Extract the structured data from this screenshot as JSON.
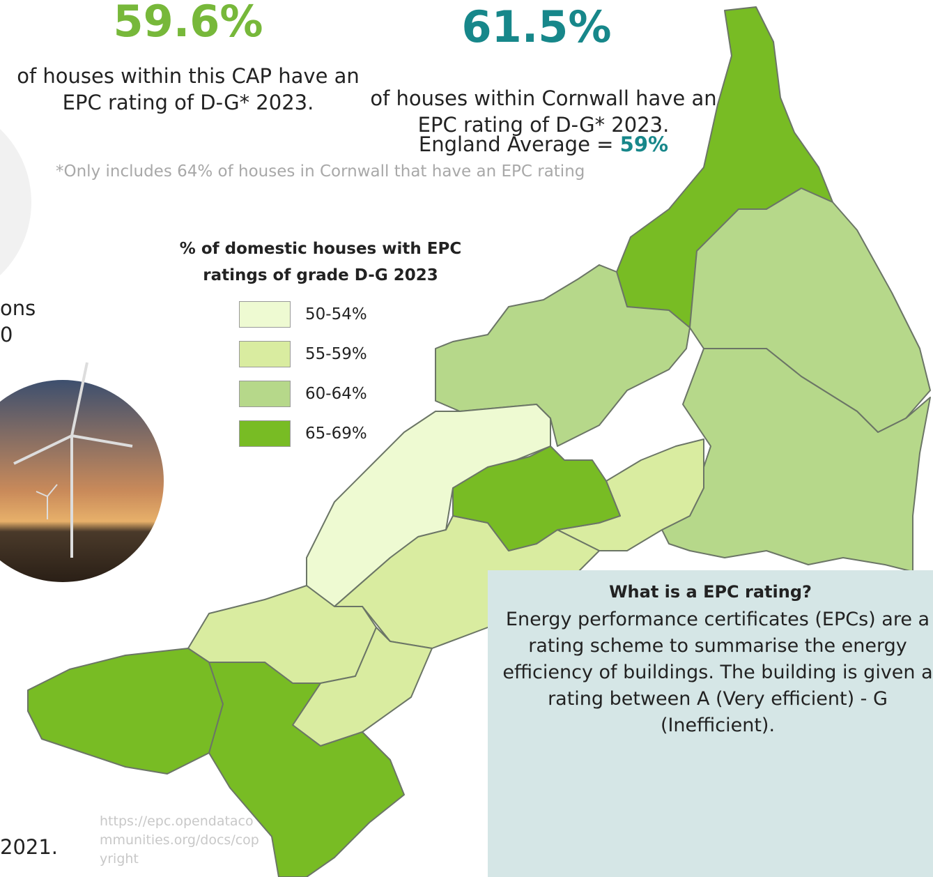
{
  "cap_stat": {
    "value": "59.6%",
    "text": "of houses within this CAP have an EPC rating of D-G* 2023."
  },
  "cornwall_stat": {
    "value": "61.5%",
    "text": "of houses within Cornwall have an EPC rating of D-G* 2023.",
    "england_label": "England Average =",
    "england_value": "59%"
  },
  "footnote": "*Only includes 64% of houses in Cornwall that have an EPC rating",
  "legend": {
    "title": "% of domestic houses with EPC ratings of grade D-G 2023",
    "items": [
      {
        "label": "50-54%",
        "color": "#eefad2"
      },
      {
        "label": "55-59%",
        "color": "#d9eca0"
      },
      {
        "label": "60-64%",
        "color": "#b6d88a"
      },
      {
        "label": "65-69%",
        "color": "#78bc24"
      }
    ]
  },
  "left_fragments": [
    "ons",
    "0",
    "2021."
  ],
  "source": "https://epc.opendatacommunities.org/docs/copyright",
  "info_box": {
    "title": "What is a EPC rating?",
    "text": "Energy performance certificates (EPCs) are a rating scheme to summarise the energy efficiency of buildings. The building is given a rating between A (Very efficient) - G (Inefficient)."
  }
}
